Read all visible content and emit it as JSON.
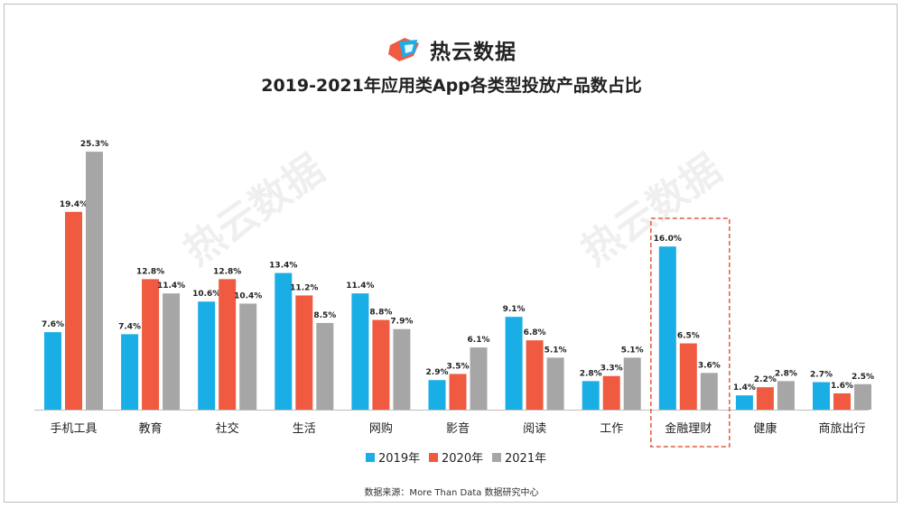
{
  "brand": {
    "name": "热云数据",
    "icon": "reyun-logo-icon"
  },
  "footer": {
    "source": "数据来源：More Than Data 数据研究中心"
  },
  "watermark": "热云数据",
  "colors": {
    "s2019": "#1aaee6",
    "s2020": "#f05a40",
    "s2021": "#a6a6a6",
    "highlight": "#e25b3f"
  },
  "chart_data": {
    "type": "bar",
    "title": "2019-2021年应用类App各类型投放产品数占比",
    "categories": [
      "手机工具",
      "教育",
      "社交",
      "生活",
      "网购",
      "影音",
      "阅读",
      "工作",
      "金融理财",
      "健康",
      "商旅出行"
    ],
    "series": [
      {
        "name": "2019年",
        "values": [
          7.6,
          7.4,
          10.6,
          13.4,
          11.4,
          2.9,
          9.1,
          2.8,
          16.0,
          1.4,
          2.7
        ]
      },
      {
        "name": "2020年",
        "values": [
          19.4,
          12.8,
          12.8,
          11.2,
          8.8,
          3.5,
          6.8,
          3.3,
          6.5,
          2.2,
          1.6
        ]
      },
      {
        "name": "2021年",
        "values": [
          25.3,
          11.4,
          10.4,
          8.5,
          7.9,
          6.1,
          5.1,
          5.1,
          3.6,
          2.8,
          2.5
        ]
      }
    ],
    "value_labels": [
      [
        "7.6%",
        "7.4%",
        "10.6%",
        "13.4%",
        "11.4%",
        "2.9%",
        "9.1%",
        "2.8%",
        "16.0%",
        "1.4%",
        "2.7%"
      ],
      [
        "19.4%",
        "12.8%",
        "12.8%",
        "11.2%",
        "8.8%",
        "3.5%",
        "6.8%",
        "3.3%",
        "6.5%",
        "2.2%",
        "1.6%"
      ],
      [
        "25.3%",
        "11.4%",
        "10.4%",
        "8.5%",
        "7.9%",
        "6.1%",
        "5.1%",
        "5.1%",
        "3.6%",
        "2.8%",
        "2.5%"
      ]
    ],
    "highlighted_category": "金融理财",
    "legend": {
      "position": "bottom-center"
    },
    "grid": false
  }
}
